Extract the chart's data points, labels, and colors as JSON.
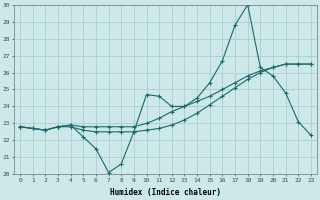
{
  "xlabel": "Humidex (Indice chaleur)",
  "bg_color": "#cce8e8",
  "grid_color": "#aacfcf",
  "line_color": "#1a6b6b",
  "x_values": [
    0,
    1,
    2,
    3,
    4,
    5,
    6,
    7,
    8,
    9,
    10,
    11,
    12,
    13,
    14,
    15,
    16,
    17,
    18,
    19,
    20,
    21,
    22,
    23
  ],
  "line1": [
    22.8,
    22.7,
    22.6,
    22.8,
    22.9,
    22.2,
    21.5,
    20.1,
    20.6,
    22.5,
    24.7,
    24.6,
    24.0,
    24.0,
    24.5,
    25.4,
    26.7,
    28.8,
    30.0,
    26.3,
    25.8,
    24.8,
    23.1,
    22.3
  ],
  "line2": [
    22.8,
    22.7,
    22.6,
    22.8,
    22.8,
    22.6,
    22.5,
    22.5,
    22.5,
    22.5,
    22.6,
    22.7,
    22.9,
    23.2,
    23.6,
    24.1,
    24.6,
    25.1,
    25.6,
    26.0,
    26.3,
    26.5,
    26.5,
    26.5
  ],
  "line3": [
    22.8,
    22.7,
    22.6,
    22.8,
    22.9,
    22.8,
    22.8,
    22.8,
    22.8,
    22.8,
    23.0,
    23.3,
    23.7,
    24.0,
    24.3,
    24.6,
    25.0,
    25.4,
    25.8,
    26.1,
    26.3,
    26.5,
    26.5,
    26.5
  ],
  "ylim": [
    20,
    30
  ],
  "xlim": [
    -0.5,
    23.5
  ],
  "yticks": [
    20,
    21,
    22,
    23,
    24,
    25,
    26,
    27,
    28,
    29,
    30
  ],
  "xticks": [
    0,
    1,
    2,
    3,
    4,
    5,
    6,
    7,
    8,
    9,
    10,
    11,
    12,
    13,
    14,
    15,
    16,
    17,
    18,
    19,
    20,
    21,
    22,
    23
  ]
}
